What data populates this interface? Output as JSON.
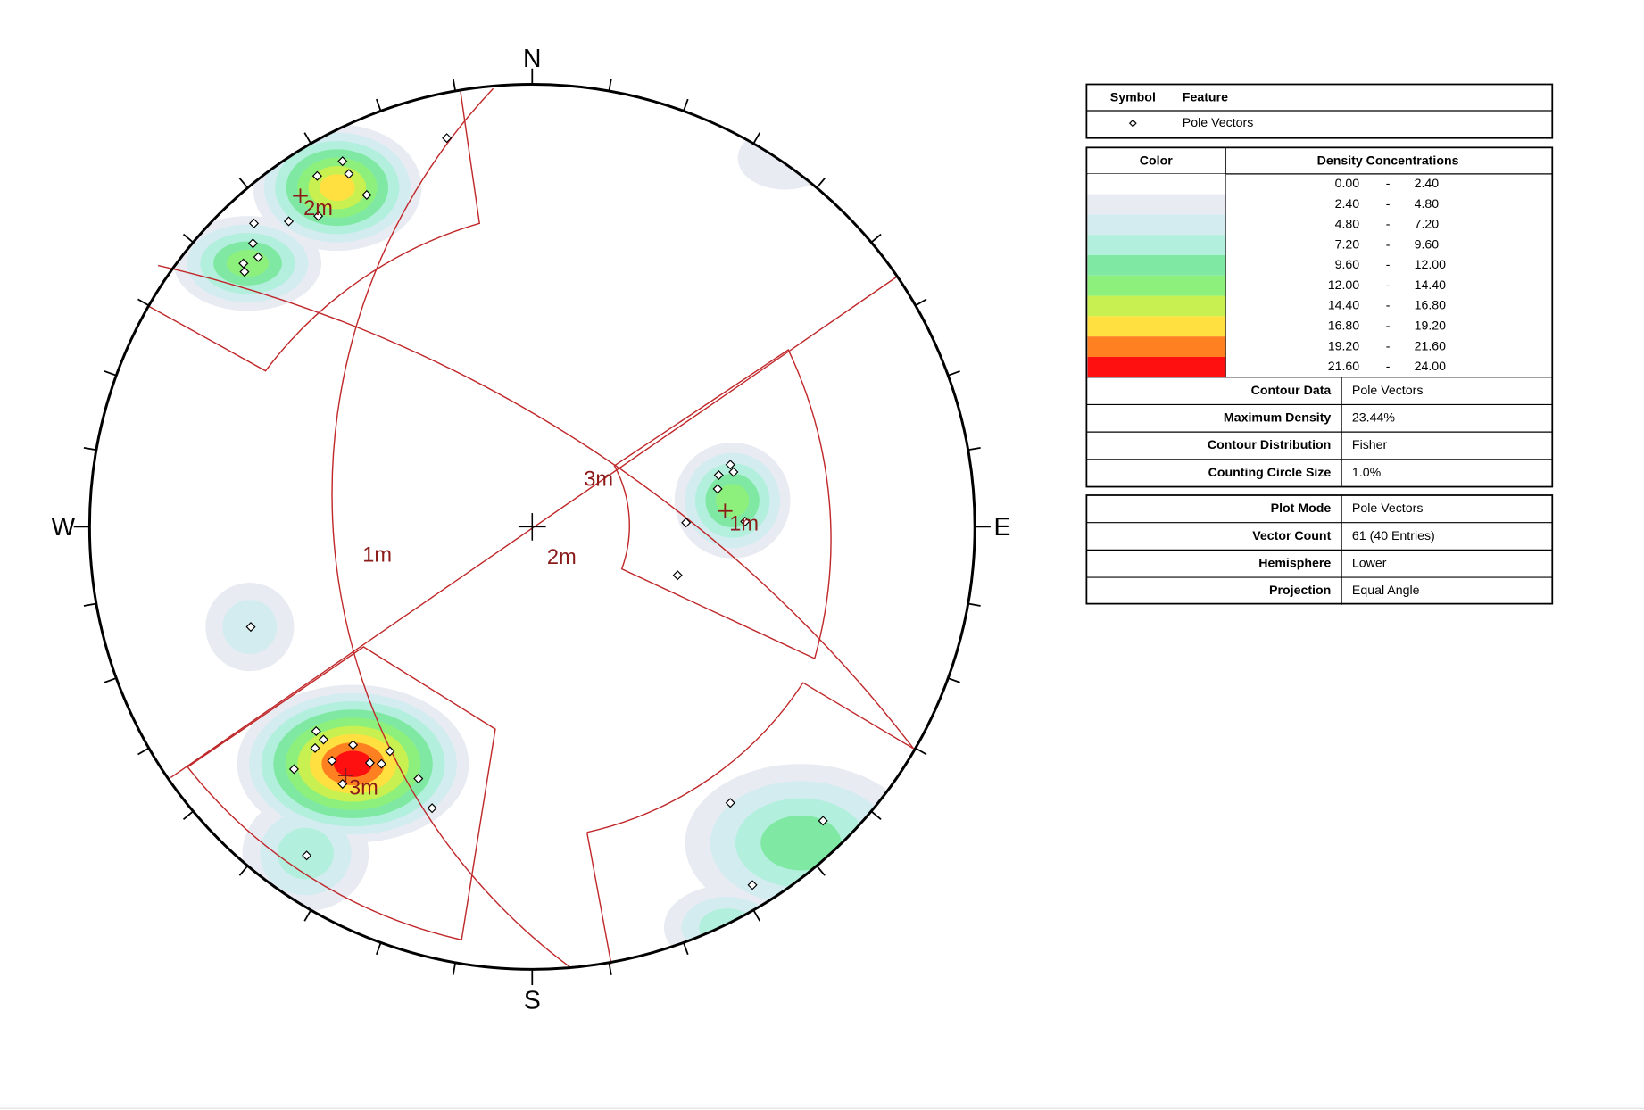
{
  "compass": {
    "north": "N",
    "south": "S",
    "east": "E",
    "west": "W"
  },
  "plane_labels": [
    "3m",
    "1m",
    "2m",
    "2m",
    "1m",
    "3m"
  ],
  "legend": {
    "symbol_header": "Symbol",
    "feature_header": "Feature",
    "feature": "Pole Vectors"
  },
  "density": {
    "color_header": "Color",
    "range_header": "Density Concentrations",
    "separator": "-",
    "rows": [
      [
        "0.00",
        "2.40"
      ],
      [
        "2.40",
        "4.80"
      ],
      [
        "4.80",
        "7.20"
      ],
      [
        "7.20",
        "9.60"
      ],
      [
        "9.60",
        "12.00"
      ],
      [
        "12.00",
        "14.40"
      ],
      [
        "14.40",
        "16.80"
      ],
      [
        "16.80",
        "19.20"
      ],
      [
        "19.20",
        "21.60"
      ],
      [
        "21.60",
        "24.00"
      ]
    ]
  },
  "contour_info": [
    [
      "Contour Data",
      "Pole Vectors"
    ],
    [
      "Maximum Density",
      "23.44%"
    ],
    [
      "Contour Distribution",
      "Fisher"
    ],
    [
      "Counting Circle Size",
      "1.0%"
    ]
  ],
  "plot_info": [
    [
      "Plot Mode",
      "Pole Vectors"
    ],
    [
      "Vector Count",
      "61 (40 Entries)"
    ],
    [
      "Hemisphere",
      "Lower"
    ],
    [
      "Projection",
      "Equal Angle"
    ]
  ]
}
